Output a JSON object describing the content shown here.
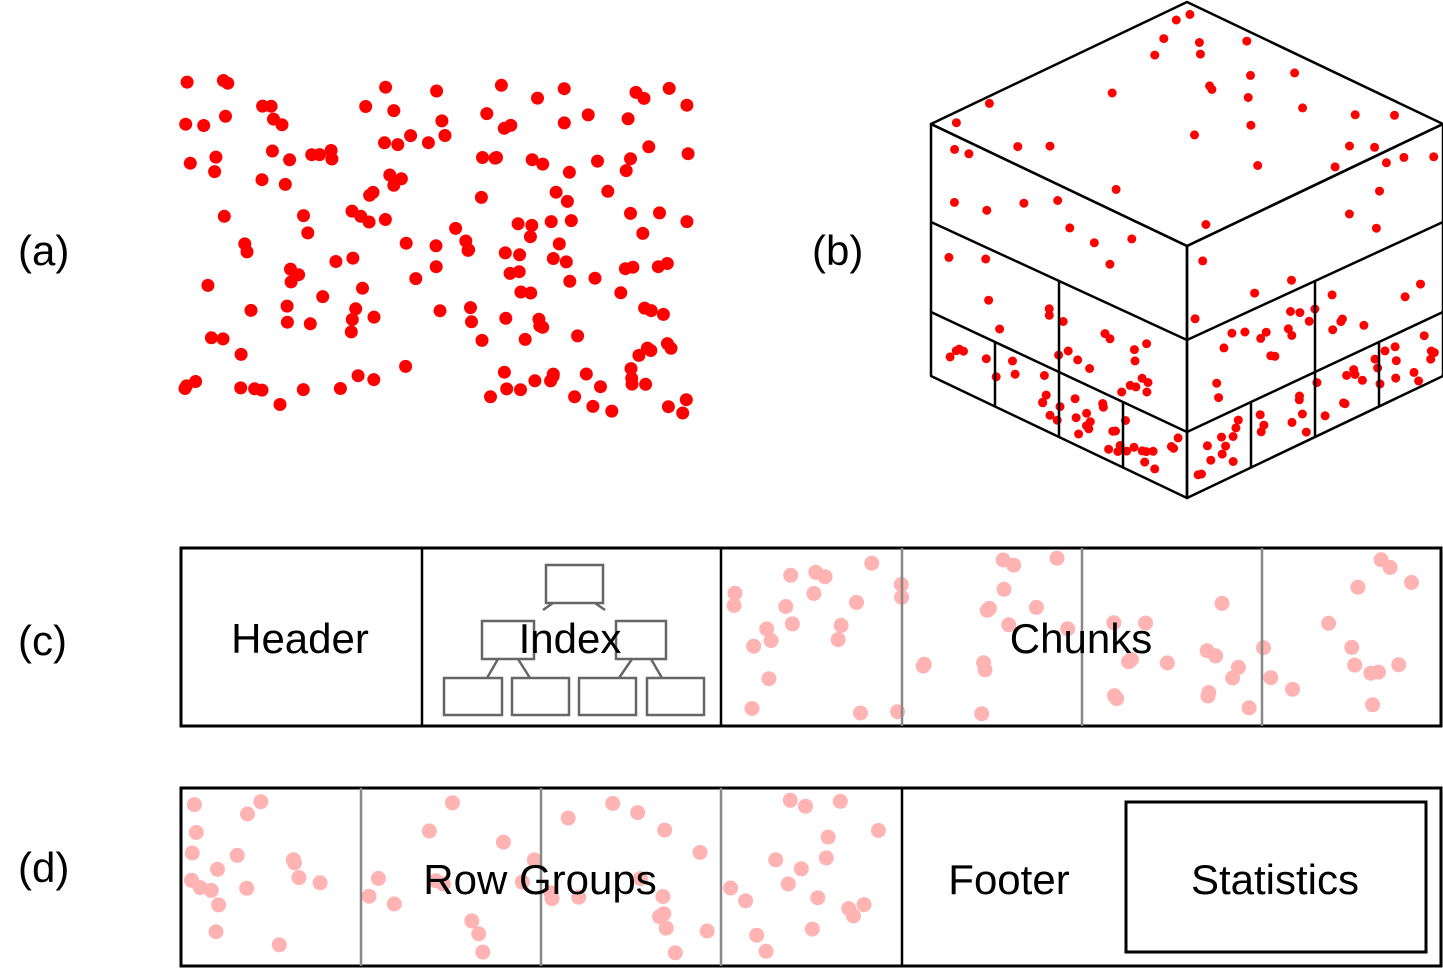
{
  "panels": {
    "a": {
      "label": "(a)"
    },
    "b": {
      "label": "(b)"
    },
    "c": {
      "label": "(c)",
      "header": "Header",
      "index": "Index",
      "chunks": "Chunks"
    },
    "d": {
      "label": "(d)",
      "row_groups": "Row Groups",
      "footer": "Footer",
      "statistics": "Statistics"
    }
  },
  "colors": {
    "point": "#ff0000",
    "faded_point": "#ffb3b3",
    "outline": "#000000",
    "divider": "#888888",
    "index_box": "#666666"
  }
}
